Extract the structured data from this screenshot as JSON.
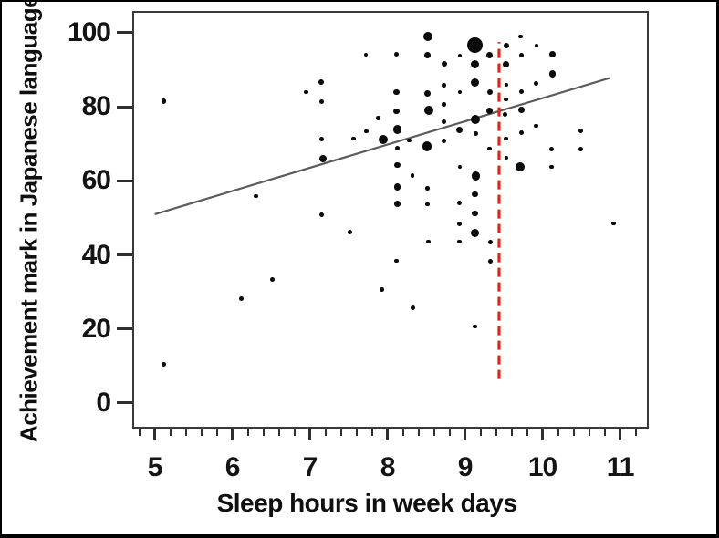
{
  "figure": {
    "background": "#ffffff",
    "border_color": "#000000"
  },
  "chart_data": {
    "type": "scatter",
    "title": "",
    "xlabel": "Sleep hours in week days",
    "ylabel": "Achievement mark in Japanese language",
    "x_ticks": [
      5,
      6,
      7,
      8,
      9,
      10,
      11
    ],
    "y_ticks": [
      0,
      20,
      40,
      60,
      80,
      100
    ],
    "xlim": [
      4.71,
      11.37
    ],
    "ylim": [
      -6.9,
      105.9
    ],
    "x_minor_tick_step": 0.2,
    "grid": "off",
    "point_color": "#0b0b0b",
    "trend_line": {
      "x1": 5.0,
      "y1": 51.0,
      "x2": 10.87,
      "y2": 87.8,
      "color": "#5b5b5b",
      "width": 2.2
    },
    "reference_line": {
      "x": 9.44,
      "y1": 6.5,
      "y2": 97.5,
      "color": "#e42417",
      "width": 3.2,
      "dash": "10 6",
      "style": "dashed"
    },
    "points": [
      {
        "x": 5.12,
        "y": 81.5,
        "r": 2.6
      },
      {
        "x": 5.12,
        "y": 10.5,
        "r": 2.4
      },
      {
        "x": 6.12,
        "y": 28.1,
        "r": 2.4
      },
      {
        "x": 6.3,
        "y": 55.9,
        "r": 2.4
      },
      {
        "x": 6.52,
        "y": 33.3,
        "r": 2.4
      },
      {
        "x": 6.95,
        "y": 84.0,
        "r": 2.4
      },
      {
        "x": 7.15,
        "y": 86.7,
        "r": 2.9
      },
      {
        "x": 7.15,
        "y": 81.4,
        "r": 2.4
      },
      {
        "x": 7.15,
        "y": 71.2,
        "r": 2.4
      },
      {
        "x": 7.17,
        "y": 66.1,
        "r": 4.0
      },
      {
        "x": 7.15,
        "y": 50.8,
        "r": 2.4
      },
      {
        "x": 7.56,
        "y": 71.4,
        "r": 2.4
      },
      {
        "x": 7.52,
        "y": 46.1,
        "r": 2.4
      },
      {
        "x": 7.72,
        "y": 94.1,
        "r": 2.3
      },
      {
        "x": 7.73,
        "y": 73.4,
        "r": 2.4
      },
      {
        "x": 7.88,
        "y": 76.9,
        "r": 2.3
      },
      {
        "x": 7.94,
        "y": 71.2,
        "r": 5.0
      },
      {
        "x": 7.93,
        "y": 30.7,
        "r": 2.3
      },
      {
        "x": 8.12,
        "y": 94.2,
        "r": 2.6
      },
      {
        "x": 8.12,
        "y": 84.0,
        "r": 3.4
      },
      {
        "x": 8.12,
        "y": 78.8,
        "r": 3.4
      },
      {
        "x": 8.13,
        "y": 73.9,
        "r": 4.6
      },
      {
        "x": 8.13,
        "y": 68.8,
        "r": 2.8
      },
      {
        "x": 8.13,
        "y": 64.3,
        "r": 3.4
      },
      {
        "x": 8.13,
        "y": 58.4,
        "r": 3.7
      },
      {
        "x": 8.13,
        "y": 53.9,
        "r": 3.4
      },
      {
        "x": 8.12,
        "y": 38.4,
        "r": 2.4
      },
      {
        "x": 8.28,
        "y": 70.9,
        "r": 2.3
      },
      {
        "x": 8.32,
        "y": 61.4,
        "r": 2.2
      },
      {
        "x": 8.33,
        "y": 25.7,
        "r": 2.4
      },
      {
        "x": 8.52,
        "y": 99.0,
        "r": 5.0
      },
      {
        "x": 8.52,
        "y": 94.0,
        "r": 3.4
      },
      {
        "x": 8.52,
        "y": 83.7,
        "r": 3.4
      },
      {
        "x": 8.53,
        "y": 79.0,
        "r": 5.0
      },
      {
        "x": 8.51,
        "y": 69.3,
        "r": 5.2
      },
      {
        "x": 8.52,
        "y": 58.0,
        "r": 2.3
      },
      {
        "x": 8.52,
        "y": 53.7,
        "r": 2.4
      },
      {
        "x": 8.53,
        "y": 43.6,
        "r": 2.4
      },
      {
        "x": 8.73,
        "y": 91.6,
        "r": 3.0
      },
      {
        "x": 8.73,
        "y": 85.8,
        "r": 2.3
      },
      {
        "x": 8.73,
        "y": 80.7,
        "r": 2.3
      },
      {
        "x": 8.73,
        "y": 76.0,
        "r": 2.4
      },
      {
        "x": 8.73,
        "y": 70.8,
        "r": 2.4
      },
      {
        "x": 8.93,
        "y": 93.8,
        "r": 1.9
      },
      {
        "x": 8.93,
        "y": 84.0,
        "r": 1.9
      },
      {
        "x": 8.93,
        "y": 73.7,
        "r": 3.4
      },
      {
        "x": 8.93,
        "y": 63.8,
        "r": 1.9
      },
      {
        "x": 8.93,
        "y": 54.0,
        "r": 2.4
      },
      {
        "x": 8.93,
        "y": 48.4,
        "r": 2.4
      },
      {
        "x": 8.93,
        "y": 43.6,
        "r": 2.4
      },
      {
        "x": 9.13,
        "y": 96.6,
        "r": 8.5
      },
      {
        "x": 9.13,
        "y": 91.5,
        "r": 4.8
      },
      {
        "x": 9.13,
        "y": 86.6,
        "r": 4.8
      },
      {
        "x": 9.14,
        "y": 76.5,
        "r": 5.0
      },
      {
        "x": 9.14,
        "y": 72.8,
        "r": 2.4
      },
      {
        "x": 9.14,
        "y": 61.3,
        "r": 4.6
      },
      {
        "x": 9.13,
        "y": 56.4,
        "r": 3.2
      },
      {
        "x": 9.13,
        "y": 51.2,
        "r": 3.2
      },
      {
        "x": 9.13,
        "y": 45.9,
        "r": 4.6
      },
      {
        "x": 9.13,
        "y": 20.7,
        "r": 2.4
      },
      {
        "x": 9.32,
        "y": 94.0,
        "r": 3.4
      },
      {
        "x": 9.32,
        "y": 84.0,
        "r": 3.2
      },
      {
        "x": 9.32,
        "y": 79.0,
        "r": 3.4
      },
      {
        "x": 9.32,
        "y": 68.7,
        "r": 2.4
      },
      {
        "x": 9.33,
        "y": 43.5,
        "r": 2.4
      },
      {
        "x": 9.33,
        "y": 38.3,
        "r": 2.4
      },
      {
        "x": 9.53,
        "y": 96.5,
        "r": 3.0
      },
      {
        "x": 9.53,
        "y": 91.4,
        "r": 3.4
      },
      {
        "x": 9.53,
        "y": 86.0,
        "r": 1.9
      },
      {
        "x": 9.53,
        "y": 82.0,
        "r": 2.4
      },
      {
        "x": 9.52,
        "y": 78.0,
        "r": 2.4
      },
      {
        "x": 9.53,
        "y": 71.4,
        "r": 2.4
      },
      {
        "x": 9.53,
        "y": 66.3,
        "r": 1.9
      },
      {
        "x": 9.72,
        "y": 99.0,
        "r": 2.4
      },
      {
        "x": 9.73,
        "y": 94.0,
        "r": 2.4
      },
      {
        "x": 9.73,
        "y": 84.1,
        "r": 2.4
      },
      {
        "x": 9.73,
        "y": 79.1,
        "r": 3.4
      },
      {
        "x": 9.73,
        "y": 73.1,
        "r": 2.4
      },
      {
        "x": 9.71,
        "y": 63.8,
        "r": 5.0
      },
      {
        "x": 9.92,
        "y": 96.6,
        "r": 1.9
      },
      {
        "x": 9.92,
        "y": 86.4,
        "r": 2.4
      },
      {
        "x": 9.92,
        "y": 74.9,
        "r": 2.3
      },
      {
        "x": 10.13,
        "y": 94.2,
        "r": 3.4
      },
      {
        "x": 10.13,
        "y": 88.9,
        "r": 3.8
      },
      {
        "x": 10.12,
        "y": 68.6,
        "r": 2.4
      },
      {
        "x": 10.12,
        "y": 63.8,
        "r": 2.4
      },
      {
        "x": 10.49,
        "y": 73.5,
        "r": 2.4
      },
      {
        "x": 10.49,
        "y": 68.6,
        "r": 2.4
      },
      {
        "x": 10.92,
        "y": 48.5,
        "r": 2.4
      }
    ]
  }
}
